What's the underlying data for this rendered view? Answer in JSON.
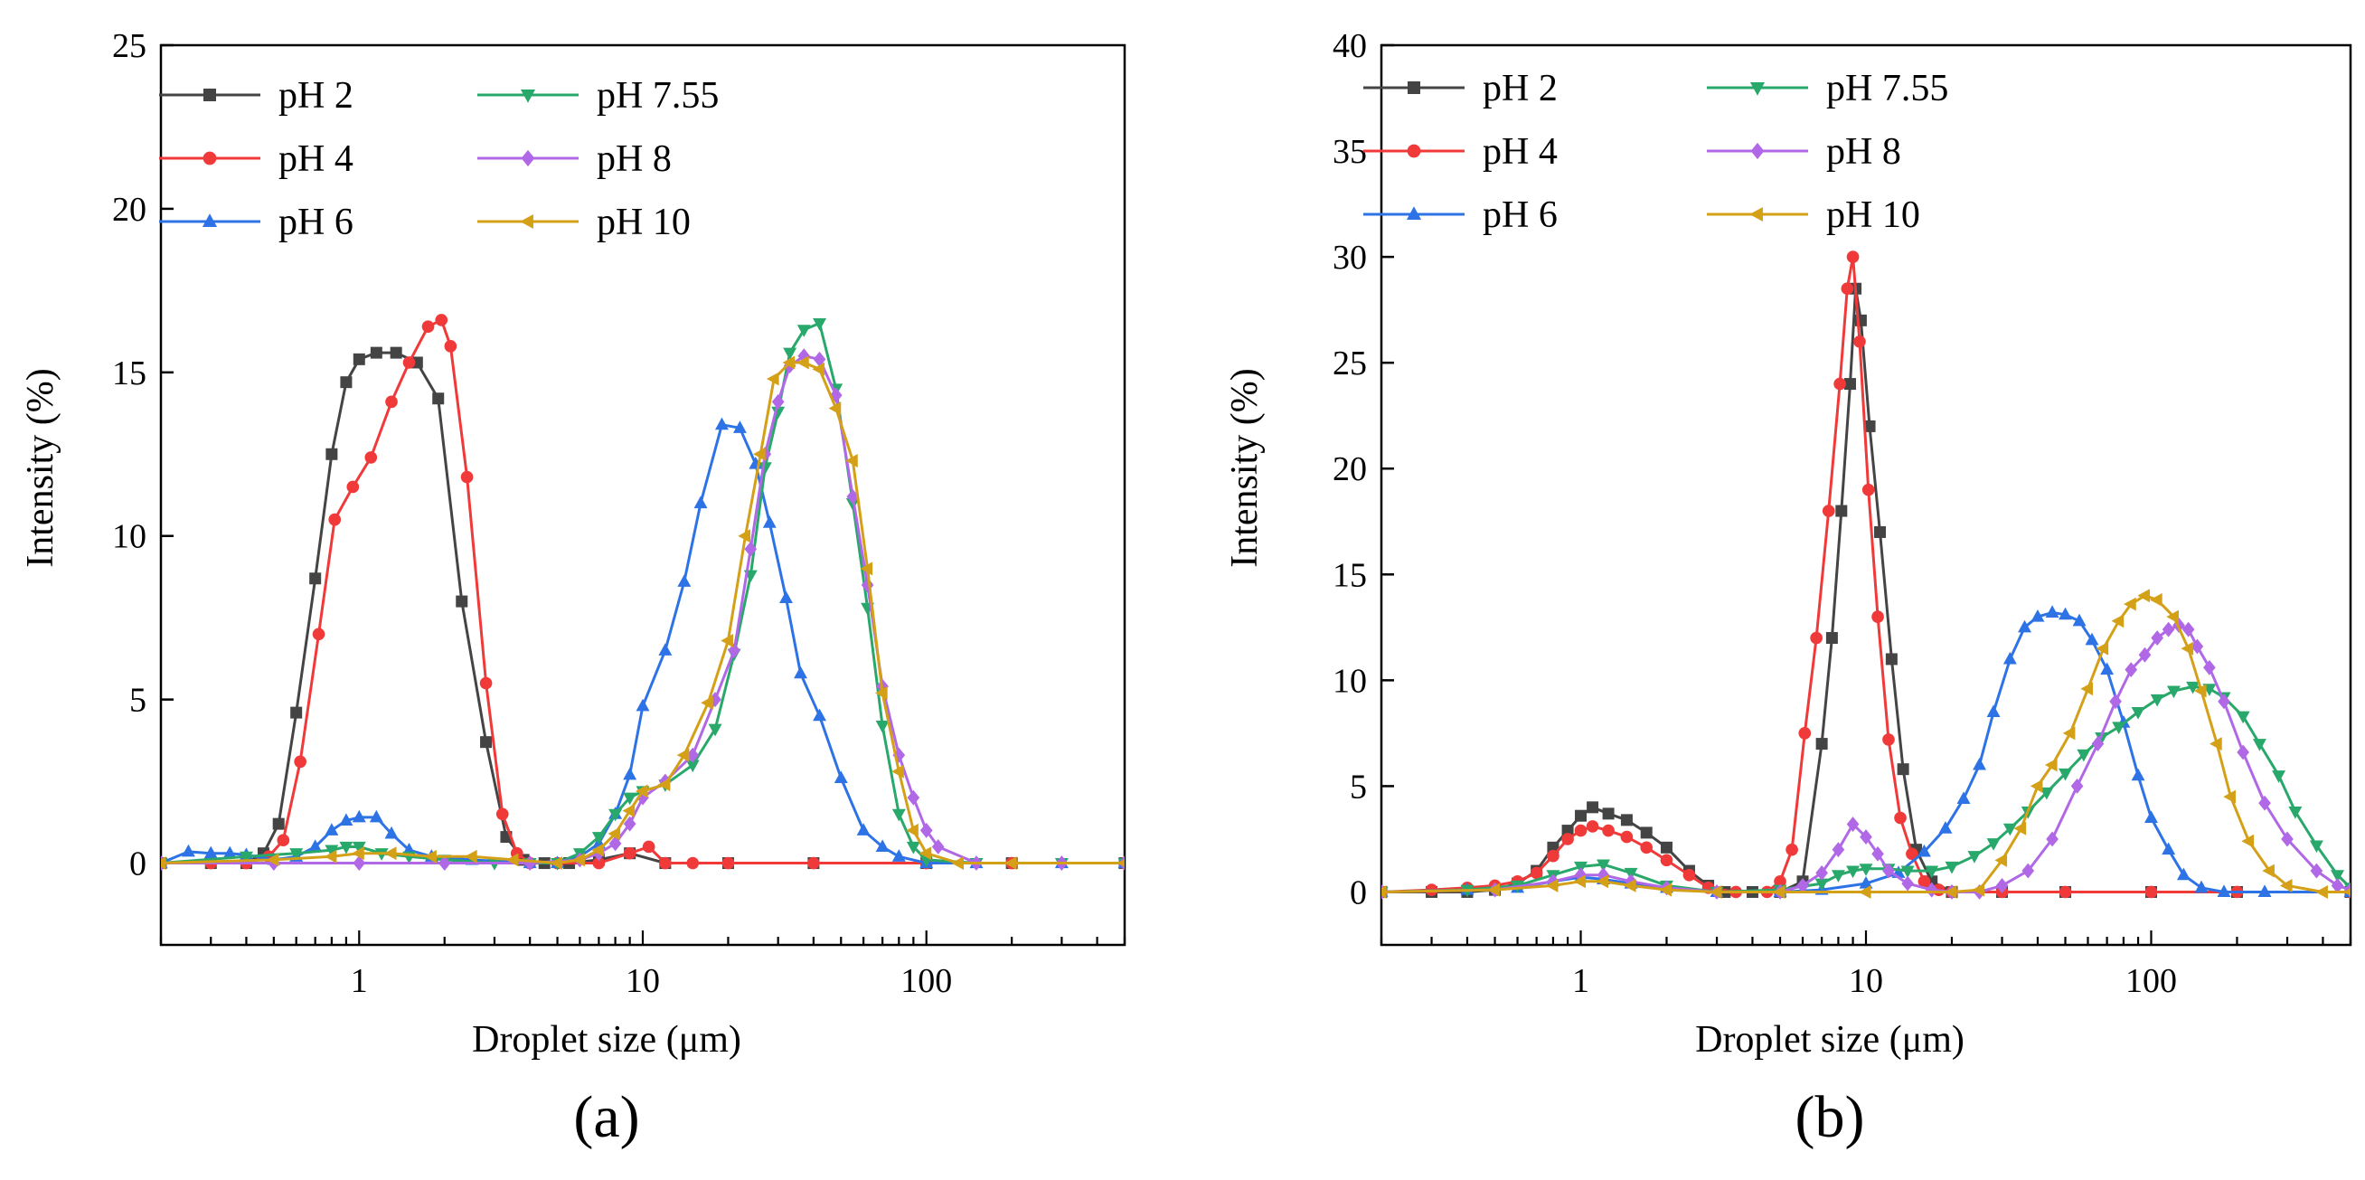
{
  "chart_data": [
    {
      "type": "line",
      "panel_label": "(a)",
      "xlabel": "Droplet size (μm)",
      "ylabel": "Intensity (%)",
      "xscale": "log",
      "xlim": [
        0.2,
        500
      ],
      "ylim": [
        -2.5,
        25
      ],
      "xticks": [
        1,
        10,
        100
      ],
      "xtick_labels": [
        "1",
        "10",
        "100"
      ],
      "yticks": [
        0,
        5,
        10,
        15,
        20,
        25
      ],
      "ytick_labels": [
        "0",
        "5",
        "10",
        "15",
        "20",
        "25"
      ],
      "legend_position": "top-left",
      "series": [
        {
          "name": "pH 2",
          "color": "#444444",
          "marker": "square",
          "x": [
            0.2,
            0.3,
            0.4,
            0.46,
            0.52,
            0.6,
            0.7,
            0.8,
            0.9,
            1.0,
            1.15,
            1.35,
            1.6,
            1.9,
            2.3,
            2.8,
            3.3,
            3.8,
            4.5,
            5.5,
            7,
            9,
            12,
            20,
            40,
            100,
            200,
            500
          ],
          "y": [
            0,
            0,
            0,
            0.3,
            1.2,
            4.6,
            8.7,
            12.5,
            14.7,
            15.4,
            15.6,
            15.6,
            15.3,
            14.2,
            8.0,
            3.7,
            0.8,
            0.1,
            0,
            0,
            0.1,
            0.3,
            0,
            0,
            0,
            0,
            0,
            0
          ]
        },
        {
          "name": "pH 4",
          "color": "#f03a3a",
          "marker": "circle",
          "x": [
            0.2,
            0.3,
            0.4,
            0.48,
            0.54,
            0.62,
            0.72,
            0.82,
            0.95,
            1.1,
            1.3,
            1.5,
            1.75,
            1.95,
            2.1,
            2.4,
            2.8,
            3.2,
            3.6,
            4,
            5,
            7,
            9,
            10.5,
            12,
            15,
            20,
            40,
            100,
            200,
            500
          ],
          "y": [
            0,
            0,
            0,
            0.2,
            0.7,
            3.1,
            7.0,
            10.5,
            11.5,
            12.4,
            14.1,
            15.3,
            16.4,
            16.6,
            15.8,
            11.8,
            5.5,
            1.5,
            0.3,
            0,
            0,
            0,
            0.3,
            0.5,
            0,
            0,
            0,
            0,
            0,
            0,
            0
          ]
        },
        {
          "name": "pH 6",
          "color": "#2e73e6",
          "marker": "triangle-up",
          "x": [
            0.2,
            0.25,
            0.3,
            0.35,
            0.4,
            0.5,
            0.6,
            0.7,
            0.8,
            0.9,
            1.0,
            1.15,
            1.3,
            1.5,
            1.8,
            2.5,
            4,
            5,
            6,
            7,
            8,
            9,
            10,
            12,
            14,
            16,
            19,
            22,
            25,
            28,
            32,
            36,
            42,
            50,
            60,
            70,
            80,
            100,
            150,
            300,
            500
          ],
          "y": [
            0,
            0.35,
            0.3,
            0.3,
            0.25,
            0.1,
            0.2,
            0.5,
            1.0,
            1.3,
            1.4,
            1.4,
            0.9,
            0.4,
            0.2,
            0.1,
            0,
            0,
            0.2,
            0.6,
            1.5,
            2.7,
            4.8,
            6.5,
            8.6,
            11.0,
            13.4,
            13.3,
            12.2,
            10.4,
            8.1,
            5.8,
            4.5,
            2.6,
            1.0,
            0.5,
            0.2,
            0,
            0,
            0,
            0
          ]
        },
        {
          "name": "pH 7.55",
          "color": "#28a86a",
          "marker": "triangle-down",
          "x": [
            0.2,
            0.4,
            0.6,
            0.8,
            0.9,
            1.0,
            1.2,
            1.5,
            2,
            3,
            4,
            5,
            6,
            7,
            8,
            9,
            10,
            12,
            15,
            18,
            21,
            24,
            27,
            30,
            33,
            37,
            42,
            48,
            55,
            62,
            70,
            80,
            90,
            100,
            150,
            300,
            500
          ],
          "y": [
            0,
            0.2,
            0.3,
            0.4,
            0.5,
            0.5,
            0.3,
            0.2,
            0.1,
            0,
            0,
            0,
            0.3,
            0.8,
            1.5,
            2.0,
            2.2,
            2.4,
            3.0,
            4.1,
            6.4,
            8.8,
            12.1,
            13.8,
            15.6,
            16.3,
            16.5,
            14.5,
            11.0,
            7.8,
            4.2,
            1.5,
            0.5,
            0.1,
            0,
            0,
            0
          ]
        },
        {
          "name": "pH 8",
          "color": "#b068e6",
          "marker": "diamond",
          "x": [
            0.2,
            0.5,
            1,
            2,
            4,
            6,
            7,
            8,
            9,
            10,
            12,
            15,
            18,
            21,
            24,
            27,
            30,
            33,
            37,
            42,
            48,
            55,
            62,
            70,
            80,
            90,
            100,
            110,
            150,
            300,
            500
          ],
          "y": [
            0,
            0,
            0,
            0,
            0,
            0.1,
            0.3,
            0.6,
            1.2,
            2.0,
            2.5,
            3.3,
            5.0,
            6.5,
            9.6,
            12.5,
            14.1,
            15.2,
            15.5,
            15.4,
            14.3,
            11.2,
            8.5,
            5.4,
            3.3,
            2.0,
            1.0,
            0.5,
            0,
            0,
            0
          ]
        },
        {
          "name": "pH 10",
          "color": "#d4a017",
          "marker": "triangle-left",
          "x": [
            0.2,
            0.5,
            0.8,
            1.0,
            1.3,
            1.8,
            2.5,
            3.5,
            5,
            6,
            7,
            8,
            9,
            10,
            12,
            14,
            17,
            20,
            23,
            26,
            29,
            33,
            37,
            42,
            48,
            55,
            62,
            70,
            80,
            90,
            100,
            130,
            200,
            500
          ],
          "y": [
            0,
            0.1,
            0.2,
            0.3,
            0.3,
            0.2,
            0.2,
            0.1,
            0,
            0.1,
            0.4,
            0.9,
            1.6,
            2.2,
            2.4,
            3.3,
            4.9,
            6.8,
            10.0,
            12.5,
            14.8,
            15.3,
            15.3,
            15.1,
            13.9,
            12.3,
            9.0,
            5.2,
            2.8,
            1.0,
            0.3,
            0,
            0,
            0
          ]
        }
      ]
    },
    {
      "type": "line",
      "panel_label": "(b)",
      "xlabel": "Droplet size (μm)",
      "ylabel": "Intensity (%)",
      "xscale": "log",
      "xlim": [
        0.2,
        500
      ],
      "ylim": [
        -2.5,
        40
      ],
      "xticks": [
        1,
        10,
        100
      ],
      "xtick_labels": [
        "1",
        "10",
        "100"
      ],
      "yticks": [
        0,
        5,
        10,
        15,
        20,
        25,
        30,
        35,
        40
      ],
      "ytick_labels": [
        "0",
        "5",
        "10",
        "15",
        "20",
        "25",
        "30",
        "35",
        "40"
      ],
      "legend_position": "top-left",
      "series": [
        {
          "name": "pH 2",
          "color": "#444444",
          "marker": "square",
          "x": [
            0.2,
            0.3,
            0.4,
            0.5,
            0.6,
            0.7,
            0.8,
            0.9,
            1.0,
            1.1,
            1.25,
            1.45,
            1.7,
            2.0,
            2.4,
            2.8,
            3.2,
            4,
            5,
            6,
            7,
            7.6,
            8.2,
            8.8,
            9.2,
            9.6,
            10.3,
            11.2,
            12.3,
            13.5,
            15,
            17,
            20,
            30,
            50,
            100,
            200,
            500
          ],
          "y": [
            0,
            0,
            0,
            0.1,
            0.4,
            1.0,
            2.1,
            2.9,
            3.6,
            4.0,
            3.7,
            3.4,
            2.8,
            2.1,
            1.0,
            0.3,
            0,
            0,
            0,
            0.5,
            7.0,
            12.0,
            18.0,
            24.0,
            28.5,
            27.0,
            22.0,
            17.0,
            11.0,
            5.8,
            2.0,
            0.5,
            0,
            0,
            0,
            0,
            0,
            0
          ]
        },
        {
          "name": "pH 4",
          "color": "#f03a3a",
          "marker": "circle",
          "x": [
            0.2,
            0.3,
            0.4,
            0.5,
            0.6,
            0.7,
            0.8,
            0.9,
            1.0,
            1.1,
            1.25,
            1.45,
            1.7,
            2.0,
            2.4,
            2.8,
            3.5,
            4.5,
            5.0,
            5.5,
            6.1,
            6.7,
            7.4,
            8.1,
            8.6,
            9.0,
            9.5,
            10.2,
            11.0,
            12.0,
            13.2,
            14.5,
            16,
            18,
            20,
            30,
            50,
            100,
            200,
            500
          ],
          "y": [
            0,
            0.1,
            0.2,
            0.3,
            0.5,
            0.9,
            1.7,
            2.5,
            2.9,
            3.1,
            2.9,
            2.6,
            2.1,
            1.5,
            0.8,
            0.2,
            0,
            0,
            0.5,
            2.0,
            7.5,
            12.0,
            18.0,
            24.0,
            28.5,
            30.0,
            26.0,
            19.0,
            13.0,
            7.2,
            3.5,
            1.8,
            0.5,
            0.1,
            0,
            0,
            0,
            0,
            0,
            0
          ]
        },
        {
          "name": "pH 6",
          "color": "#2e73e6",
          "marker": "triangle-up",
          "x": [
            0.2,
            0.4,
            0.6,
            0.8,
            1.0,
            1.2,
            1.5,
            2,
            3,
            5,
            7,
            10,
            13,
            16,
            19,
            22,
            25,
            28,
            32,
            36,
            40,
            45,
            50,
            56,
            62,
            70,
            80,
            90,
            100,
            115,
            130,
            150,
            180,
            250,
            500
          ],
          "y": [
            0,
            0.1,
            0.2,
            0.5,
            0.7,
            0.6,
            0.4,
            0.2,
            0,
            0,
            0.1,
            0.4,
            0.9,
            1.9,
            3.0,
            4.4,
            6.0,
            8.5,
            11.0,
            12.5,
            13.0,
            13.2,
            13.1,
            12.8,
            11.9,
            10.5,
            8.0,
            5.5,
            3.5,
            2.0,
            0.8,
            0.2,
            0,
            0,
            0
          ]
        },
        {
          "name": "pH 7.55",
          "color": "#28a86a",
          "marker": "triangle-down",
          "x": [
            0.2,
            0.4,
            0.6,
            0.8,
            1.0,
            1.2,
            1.5,
            2,
            3,
            5,
            7,
            8,
            9,
            10,
            12,
            14,
            17,
            20,
            24,
            28,
            32,
            37,
            43,
            50,
            58,
            67,
            77,
            90,
            105,
            120,
            140,
            160,
            180,
            210,
            240,
            280,
            320,
            380,
            450,
            500
          ],
          "y": [
            0,
            0.1,
            0.3,
            0.8,
            1.2,
            1.3,
            0.9,
            0.3,
            0,
            0.1,
            0.4,
            0.8,
            1.0,
            1.1,
            1.1,
            1.0,
            1.0,
            1.2,
            1.7,
            2.3,
            3.0,
            3.8,
            4.7,
            5.6,
            6.5,
            7.3,
            7.8,
            8.5,
            9.1,
            9.5,
            9.7,
            9.6,
            9.2,
            8.3,
            7.0,
            5.5,
            3.8,
            2.2,
            0.8,
            0.2
          ]
        },
        {
          "name": "pH 8",
          "color": "#b068e6",
          "marker": "diamond",
          "x": [
            0.2,
            0.5,
            0.8,
            1.0,
            1.2,
            1.5,
            2,
            3,
            5,
            6,
            7,
            8,
            9,
            10,
            11,
            12,
            14,
            17,
            20,
            25,
            30,
            37,
            45,
            55,
            65,
            75,
            85,
            95,
            105,
            115,
            125,
            135,
            145,
            160,
            180,
            210,
            250,
            300,
            380,
            450,
            500
          ],
          "y": [
            0,
            0.1,
            0.5,
            0.8,
            0.8,
            0.5,
            0.2,
            0,
            0,
            0.3,
            0.9,
            2.0,
            3.2,
            2.6,
            1.8,
            1.0,
            0.4,
            0.1,
            0,
            0,
            0.3,
            1.0,
            2.5,
            5.0,
            7.0,
            9.0,
            10.5,
            11.2,
            12.0,
            12.4,
            12.6,
            12.4,
            11.6,
            10.6,
            9.0,
            6.6,
            4.2,
            2.5,
            1.0,
            0.3,
            0.1
          ]
        },
        {
          "name": "pH 10",
          "color": "#d4a017",
          "marker": "triangle-left",
          "x": [
            0.2,
            0.5,
            0.8,
            1.0,
            1.2,
            1.5,
            2,
            3,
            5,
            10,
            20,
            25,
            30,
            35,
            40,
            45,
            52,
            60,
            68,
            77,
            85,
            95,
            105,
            120,
            135,
            150,
            170,
            190,
            220,
            260,
            300,
            400,
            500
          ],
          "y": [
            0,
            0.1,
            0.3,
            0.5,
            0.5,
            0.3,
            0.1,
            0,
            0,
            0,
            0,
            0.1,
            1.5,
            3.0,
            5.0,
            6.0,
            7.5,
            9.6,
            11.5,
            12.8,
            13.6,
            14.0,
            13.8,
            13.0,
            11.5,
            9.5,
            7.0,
            4.5,
            2.4,
            1.0,
            0.3,
            0,
            0
          ]
        }
      ]
    }
  ]
}
